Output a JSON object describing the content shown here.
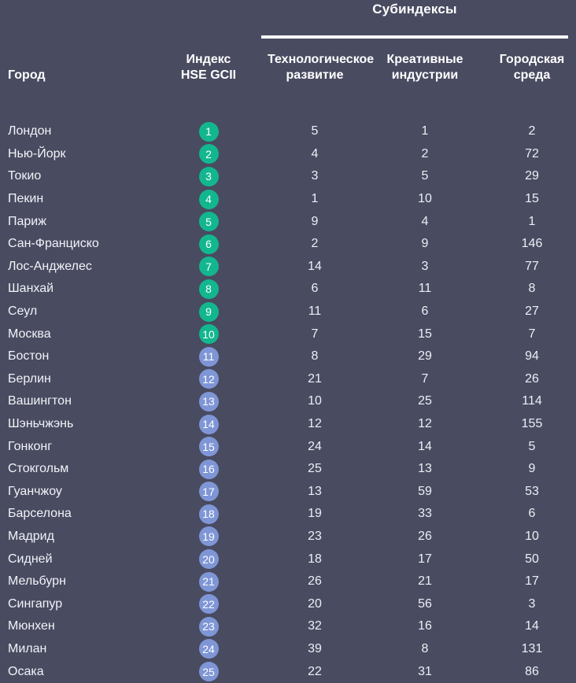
{
  "colors": {
    "background": "#494b61",
    "body_text": "#edeff5",
    "header_text": "#ffffff",
    "divider_line": "#ffffff",
    "badge_green_top10": "#12b78f",
    "badge_blue_rest": "#7f96d6"
  },
  "chart_data": {
    "type": "table",
    "group_header": "Субиндексы",
    "columns": {
      "city": "Город",
      "index": "Индекс\nHSE GCII",
      "tech": "Технологическое\nразвитие",
      "creative": "Креативные\nиндустрии",
      "urban": "Городская\nсреда"
    },
    "rank_color_rule": {
      "green_max_rank": 10
    },
    "rows": [
      {
        "city": "Лондон",
        "rank": 1,
        "tech": 5,
        "creative": 1,
        "urban": 2
      },
      {
        "city": "Нью-Йорк",
        "rank": 2,
        "tech": 4,
        "creative": 2,
        "urban": 72
      },
      {
        "city": "Токио",
        "rank": 3,
        "tech": 3,
        "creative": 5,
        "urban": 29
      },
      {
        "city": "Пекин",
        "rank": 4,
        "tech": 1,
        "creative": 10,
        "urban": 15
      },
      {
        "city": "Париж",
        "rank": 5,
        "tech": 9,
        "creative": 4,
        "urban": 1
      },
      {
        "city": "Сан-Франциско",
        "rank": 6,
        "tech": 2,
        "creative": 9,
        "urban": 146
      },
      {
        "city": "Лос-Анджелес",
        "rank": 7,
        "tech": 14,
        "creative": 3,
        "urban": 77
      },
      {
        "city": "Шанхай",
        "rank": 8,
        "tech": 6,
        "creative": 11,
        "urban": 8
      },
      {
        "city": "Сеул",
        "rank": 9,
        "tech": 11,
        "creative": 6,
        "urban": 27
      },
      {
        "city": "Москва",
        "rank": 10,
        "tech": 7,
        "creative": 15,
        "urban": 7
      },
      {
        "city": "Бостон",
        "rank": 11,
        "tech": 8,
        "creative": 29,
        "urban": 94
      },
      {
        "city": "Берлин",
        "rank": 12,
        "tech": 21,
        "creative": 7,
        "urban": 26
      },
      {
        "city": "Вашингтон",
        "rank": 13,
        "tech": 10,
        "creative": 25,
        "urban": 114
      },
      {
        "city": "Шэньчжэнь",
        "rank": 14,
        "tech": 12,
        "creative": 12,
        "urban": 155
      },
      {
        "city": "Гонконг",
        "rank": 15,
        "tech": 24,
        "creative": 14,
        "urban": 5
      },
      {
        "city": "Стокгольм",
        "rank": 16,
        "tech": 25,
        "creative": 13,
        "urban": 9
      },
      {
        "city": "Гуанчжоу",
        "rank": 17,
        "tech": 13,
        "creative": 59,
        "urban": 53
      },
      {
        "city": "Барселона",
        "rank": 18,
        "tech": 19,
        "creative": 33,
        "urban": 6
      },
      {
        "city": "Мадрид",
        "rank": 19,
        "tech": 23,
        "creative": 26,
        "urban": 10
      },
      {
        "city": "Сидней",
        "rank": 20,
        "tech": 18,
        "creative": 17,
        "urban": 50
      },
      {
        "city": "Мельбурн",
        "rank": 21,
        "tech": 26,
        "creative": 21,
        "urban": 17
      },
      {
        "city": "Сингапур",
        "rank": 22,
        "tech": 20,
        "creative": 56,
        "urban": 3
      },
      {
        "city": "Мюнхен",
        "rank": 23,
        "tech": 32,
        "creative": 16,
        "urban": 14
      },
      {
        "city": "Милан",
        "rank": 24,
        "tech": 39,
        "creative": 8,
        "urban": 131
      },
      {
        "city": "Осака",
        "rank": 25,
        "tech": 22,
        "creative": 31,
        "urban": 86
      }
    ]
  }
}
